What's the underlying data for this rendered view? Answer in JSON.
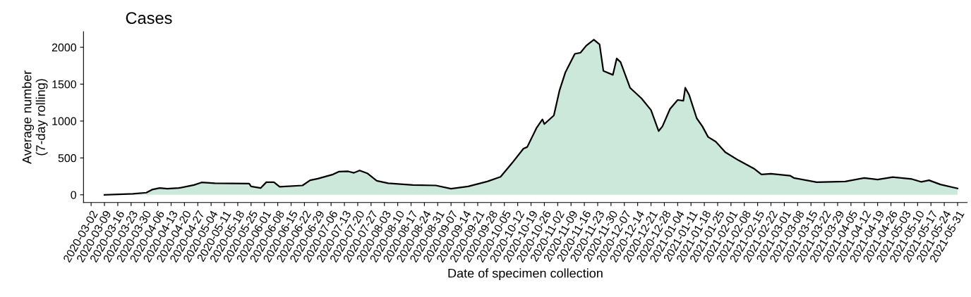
{
  "chart_data": {
    "type": "area",
    "title": "Cases",
    "xlabel": "Date of specimen collection",
    "ylabel": "Average number\n(7-day rolling)",
    "xlim": [
      "2020-02-27",
      "2021-06-05"
    ],
    "ylim": [
      -105,
      2210
    ],
    "yticks": [
      0,
      500,
      1000,
      1500,
      2000
    ],
    "xticks": [
      "2020-03-02",
      "2020-03-09",
      "2020-03-16",
      "2020-03-23",
      "2020-03-30",
      "2020-04-06",
      "2020-04-13",
      "2020-04-20",
      "2020-04-27",
      "2020-05-04",
      "2020-05-11",
      "2020-05-18",
      "2020-05-25",
      "2020-06-01",
      "2020-06-08",
      "2020-06-15",
      "2020-06-22",
      "2020-06-29",
      "2020-07-06",
      "2020-07-13",
      "2020-07-20",
      "2020-07-27",
      "2020-08-03",
      "2020-08-10",
      "2020-08-17",
      "2020-08-24",
      "2020-08-31",
      "2020-09-07",
      "2020-09-14",
      "2020-09-21",
      "2020-09-28",
      "2020-10-05",
      "2020-10-12",
      "2020-10-19",
      "2020-10-26",
      "2020-11-02",
      "2020-11-09",
      "2020-11-16",
      "2020-11-23",
      "2020-11-30",
      "2020-12-07",
      "2020-12-14",
      "2020-12-21",
      "2020-12-28",
      "2021-01-04",
      "2021-01-11",
      "2021-01-18",
      "2021-01-25",
      "2021-02-01",
      "2021-02-08",
      "2021-02-15",
      "2021-02-22",
      "2021-03-01",
      "2021-03-08",
      "2021-03-15",
      "2021-03-22",
      "2021-03-29",
      "2021-04-05",
      "2021-04-12",
      "2021-04-19",
      "2021-04-26",
      "2021-05-03",
      "2021-05-10",
      "2021-05-17",
      "2021-05-24",
      "2021-05-31"
    ],
    "grid": false,
    "series": [
      {
        "color": "#cce8da",
        "x": [
          "2020-03-09",
          "2020-03-24",
          "2020-03-31",
          "2020-04-03",
          "2020-04-07",
          "2020-04-11",
          "2020-04-17",
          "2020-04-25",
          "2020-04-29",
          "2020-05-06",
          "2020-05-24",
          "2020-05-25",
          "2020-05-30",
          "2020-06-02",
          "2020-06-06",
          "2020-06-09",
          "2020-06-21",
          "2020-06-25",
          "2020-06-29",
          "2020-07-07",
          "2020-07-10",
          "2020-07-15",
          "2020-07-18",
          "2020-07-21",
          "2020-07-25",
          "2020-07-30",
          "2020-08-05",
          "2020-08-18",
          "2020-08-30",
          "2020-09-07",
          "2020-09-16",
          "2020-09-26",
          "2020-10-03",
          "2020-10-09",
          "2020-10-15",
          "2020-10-17",
          "2020-10-22",
          "2020-10-25",
          "2020-10-26",
          "2020-10-31",
          "2020-11-03",
          "2020-11-06",
          "2020-11-11",
          "2020-11-14",
          "2020-11-17",
          "2020-11-21",
          "2020-11-24",
          "2020-11-26",
          "2020-12-01",
          "2020-12-03",
          "2020-12-05",
          "2020-12-10",
          "2020-12-16",
          "2020-12-21",
          "2020-12-25",
          "2020-12-27",
          "2020-12-31",
          "2021-01-04",
          "2021-01-07",
          "2021-01-08",
          "2021-01-10",
          "2021-01-14",
          "2021-01-17",
          "2021-01-20",
          "2021-01-24",
          "2021-01-29",
          "2021-02-05",
          "2021-02-13",
          "2021-02-17",
          "2021-02-22",
          "2021-03-04",
          "2021-03-06",
          "2021-03-18",
          "2021-04-02",
          "2021-04-12",
          "2021-04-19",
          "2021-04-27",
          "2021-05-07",
          "2021-05-12",
          "2021-05-16",
          "2021-05-22",
          "2021-05-31"
        ],
        "values": [
          0,
          13,
          29,
          70,
          92,
          83,
          92,
          133,
          168,
          156,
          152,
          114,
          92,
          171,
          171,
          108,
          127,
          197,
          219,
          276,
          314,
          318,
          298,
          330,
          292,
          190,
          156,
          133,
          127,
          83,
          114,
          181,
          244,
          429,
          625,
          648,
          911,
          1022,
          959,
          1076,
          1419,
          1657,
          1911,
          1927,
          2022,
          2102,
          2038,
          1680,
          1626,
          1848,
          1800,
          1451,
          1308,
          1149,
          864,
          927,
          1165,
          1286,
          1276,
          1451,
          1356,
          1038,
          927,
          784,
          721,
          578,
          467,
          356,
          276,
          286,
          260,
          229,
          171,
          181,
          229,
          206,
          241,
          213,
          175,
          197,
          140,
          86
        ]
      }
    ]
  }
}
